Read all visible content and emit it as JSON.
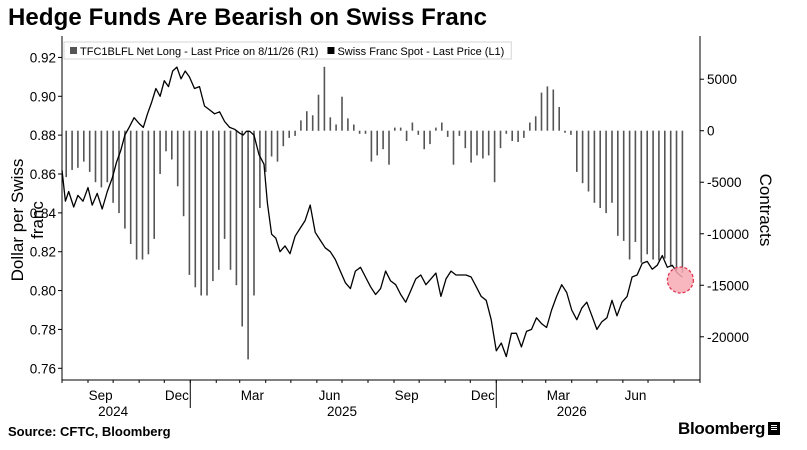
{
  "title": "Hedge Funds Are Bearish on Swiss Franc",
  "source": "Source: CFTC, Bloomberg",
  "brand": "Bloomberg",
  "chart_data": {
    "type": "line",
    "ylabel": "Dollar per Swiss franc",
    "ylabel_right": "Contracts",
    "y_left_ticks": [
      "0.92",
      "0.90",
      "0.88",
      "0.86",
      "0.84",
      "0.82",
      "0.80",
      "0.78",
      "0.76"
    ],
    "y_left_lim": [
      0.755,
      0.93
    ],
    "y_right_ticks": [
      "5000",
      "0",
      "-5000",
      "-10000",
      "-15000",
      "-20000"
    ],
    "y_right_lim": [
      -24000,
      9000
    ],
    "x_ticks": [
      {
        "label": "Sep",
        "month_index": 1
      },
      {
        "label": "Dec",
        "month_index": 4
      },
      {
        "label": "Mar",
        "month_index": 7
      },
      {
        "label": "Jun",
        "month_index": 10
      },
      {
        "label": "Sep",
        "month_index": 13
      },
      {
        "label": "Dec",
        "month_index": 16
      },
      {
        "label": "Mar",
        "month_index": 19
      },
      {
        "label": "Jun",
        "month_index": 22
      }
    ],
    "year_labels": [
      {
        "label": "2024",
        "month_index": 2.5
      },
      {
        "label": "2025",
        "month_index": 11.5
      },
      {
        "label": "2026",
        "month_index": 20.5
      }
    ],
    "x_start": "2024-08-01",
    "x_end": "2026-09-01",
    "legend": [
      {
        "label": "TFC1BLFL Net Long - Last Price on 8/11/26 (R1)",
        "color": "#555555",
        "marker": "square"
      },
      {
        "label": "Swiss Franc Spot - Last Price (L1)",
        "color": "#000000",
        "marker": "square"
      }
    ],
    "series": [
      {
        "name": "TFC1BLFL Net Long - Last Price on 8/11/26",
        "axis": "right",
        "type": "bar",
        "x": [
          "2024-08-06",
          "2024-08-13",
          "2024-08-20",
          "2024-08-27",
          "2024-09-03",
          "2024-09-10",
          "2024-09-17",
          "2024-09-24",
          "2024-10-01",
          "2024-10-08",
          "2024-10-15",
          "2024-10-22",
          "2024-10-29",
          "2024-11-05",
          "2024-11-12",
          "2024-11-19",
          "2024-11-26",
          "2024-12-03",
          "2024-12-10",
          "2024-12-17",
          "2024-12-24",
          "2024-12-31",
          "2025-01-07",
          "2025-01-14",
          "2025-01-21",
          "2025-01-28",
          "2025-02-04",
          "2025-02-11",
          "2025-02-18",
          "2025-02-25",
          "2025-03-04",
          "2025-03-11",
          "2025-03-18",
          "2025-03-25",
          "2025-04-01",
          "2025-04-08",
          "2025-04-15",
          "2025-04-22",
          "2025-04-29",
          "2025-05-06",
          "2025-05-13",
          "2025-05-20",
          "2025-05-27",
          "2025-06-03",
          "2025-06-10",
          "2025-06-17",
          "2025-06-24",
          "2025-07-01",
          "2025-07-08",
          "2025-07-15",
          "2025-07-22",
          "2025-07-29",
          "2025-08-05",
          "2025-08-12",
          "2025-08-19",
          "2025-08-26",
          "2025-09-02",
          "2025-09-09",
          "2025-09-16",
          "2025-09-23",
          "2025-09-30",
          "2025-10-07",
          "2025-10-14",
          "2025-10-21",
          "2025-10-28",
          "2025-11-04",
          "2025-11-11",
          "2025-11-18",
          "2025-11-25",
          "2025-12-02",
          "2025-12-09",
          "2025-12-16",
          "2025-12-23",
          "2025-12-30",
          "2026-01-06",
          "2026-01-13",
          "2026-01-20",
          "2026-01-27",
          "2026-02-03",
          "2026-02-10",
          "2026-02-17",
          "2026-02-24",
          "2026-03-03",
          "2026-03-10",
          "2026-03-17",
          "2026-03-24",
          "2026-03-31",
          "2026-04-07",
          "2026-04-14",
          "2026-04-21",
          "2026-04-28",
          "2026-05-05",
          "2026-05-12",
          "2026-05-19",
          "2026-05-26",
          "2026-06-02",
          "2026-06-09",
          "2026-06-16",
          "2026-06-23",
          "2026-06-30",
          "2026-07-07",
          "2026-07-14",
          "2026-07-21",
          "2026-07-28",
          "2026-08-04",
          "2026-08-11"
        ],
        "values": [
          -4500,
          -3800,
          -3600,
          -3000,
          -4000,
          -5000,
          -5500,
          -5000,
          -7000,
          -8000,
          -9500,
          -11000,
          -12500,
          -12500,
          -12000,
          -10500,
          -4200,
          -2000,
          -2800,
          -5400,
          -8300,
          -14000,
          -15200,
          -16000,
          -16000,
          -14600,
          -13500,
          -10500,
          -13500,
          -15000,
          -19000,
          -22200,
          -16000,
          -7500,
          -4000,
          -2500,
          -3000,
          -1500,
          -700,
          -500,
          1000,
          1900,
          1500,
          3500,
          6200,
          1300,
          600,
          3300,
          1200,
          600,
          -300,
          -300,
          -3000,
          -2400,
          -1800,
          -3300,
          300,
          300,
          -1000,
          800,
          -400,
          -1800,
          -1300,
          300,
          800,
          -600,
          -3300,
          -500,
          -1700,
          -3100,
          -2400,
          -2700,
          -2400,
          -5000,
          -1700,
          -300,
          -1000,
          -1100,
          -700,
          800,
          1400,
          3700,
          4300,
          4000,
          2300,
          -200,
          -400,
          -4000,
          -5100,
          -5900,
          -7000,
          -7500,
          -8000,
          -7000,
          -10200,
          -10700,
          -12500,
          -10800,
          -12800,
          -12000,
          -12500,
          -12600,
          -12400,
          -13100,
          -13600,
          -13800
        ]
      },
      {
        "name": "Swiss Franc Spot - Last Price",
        "axis": "left",
        "type": "line",
        "x": [
          "2024-08-01",
          "2024-08-05",
          "2024-08-09",
          "2024-08-15",
          "2024-08-20",
          "2024-08-26",
          "2024-09-01",
          "2024-09-06",
          "2024-09-12",
          "2024-09-18",
          "2024-09-24",
          "2024-09-30",
          "2024-10-05",
          "2024-10-10",
          "2024-10-15",
          "2024-10-20",
          "2024-10-26",
          "2024-11-01",
          "2024-11-06",
          "2024-11-11",
          "2024-11-16",
          "2024-11-21",
          "2024-11-26",
          "2024-12-01",
          "2024-12-06",
          "2024-12-11",
          "2024-12-16",
          "2024-12-21",
          "2024-12-26",
          "2024-12-31",
          "2025-01-06",
          "2025-01-12",
          "2025-01-18",
          "2025-01-24",
          "2025-01-30",
          "2025-02-05",
          "2025-02-11",
          "2025-02-17",
          "2025-02-23",
          "2025-03-01",
          "2025-03-05",
          "2025-03-09",
          "2025-03-13",
          "2025-03-18",
          "2025-03-24",
          "2025-03-30",
          "2025-04-03",
          "2025-04-08",
          "2025-04-13",
          "2025-04-18",
          "2025-04-24",
          "2025-04-30",
          "2025-05-06",
          "2025-05-12",
          "2025-05-18",
          "2025-05-24",
          "2025-05-30",
          "2025-06-05",
          "2025-06-11",
          "2025-06-17",
          "2025-06-23",
          "2025-06-29",
          "2025-07-05",
          "2025-07-11",
          "2025-07-17",
          "2025-07-23",
          "2025-07-29",
          "2025-08-04",
          "2025-08-10",
          "2025-08-16",
          "2025-08-22",
          "2025-08-28",
          "2025-09-03",
          "2025-09-09",
          "2025-09-15",
          "2025-09-21",
          "2025-09-27",
          "2025-10-03",
          "2025-10-09",
          "2025-10-15",
          "2025-10-21",
          "2025-10-27",
          "2025-11-02",
          "2025-11-08",
          "2025-11-14",
          "2025-11-20",
          "2025-11-26",
          "2025-12-02",
          "2025-12-08",
          "2025-12-14",
          "2025-12-20",
          "2025-12-26",
          "2026-01-01",
          "2026-01-07",
          "2026-01-13",
          "2026-01-19",
          "2026-01-25",
          "2026-01-31",
          "2026-02-06",
          "2026-02-12",
          "2026-02-18",
          "2026-02-24",
          "2026-03-02",
          "2026-03-08",
          "2026-03-14",
          "2026-03-20",
          "2026-03-26",
          "2026-04-01",
          "2026-04-07",
          "2026-04-13",
          "2026-04-19",
          "2026-04-25",
          "2026-05-01",
          "2026-05-07",
          "2026-05-13",
          "2026-05-19",
          "2026-05-25",
          "2026-05-31",
          "2026-06-06",
          "2026-06-12",
          "2026-06-18",
          "2026-06-24",
          "2026-06-30",
          "2026-07-06",
          "2026-07-12",
          "2026-07-18",
          "2026-07-24",
          "2026-07-30",
          "2026-08-05",
          "2026-08-11"
        ],
        "values": [
          0.862,
          0.846,
          0.851,
          0.843,
          0.849,
          0.846,
          0.853,
          0.844,
          0.85,
          0.842,
          0.851,
          0.858,
          0.866,
          0.872,
          0.88,
          0.884,
          0.889,
          0.886,
          0.884,
          0.891,
          0.897,
          0.904,
          0.9,
          0.908,
          0.905,
          0.913,
          0.915,
          0.909,
          0.913,
          0.91,
          0.904,
          0.905,
          0.895,
          0.893,
          0.891,
          0.892,
          0.887,
          0.884,
          0.883,
          0.881,
          0.88,
          0.882,
          0.882,
          0.88,
          0.87,
          0.865,
          0.845,
          0.829,
          0.827,
          0.82,
          0.823,
          0.819,
          0.828,
          0.832,
          0.836,
          0.844,
          0.83,
          0.826,
          0.822,
          0.82,
          0.816,
          0.81,
          0.804,
          0.801,
          0.81,
          0.812,
          0.807,
          0.802,
          0.798,
          0.801,
          0.81,
          0.805,
          0.803,
          0.798,
          0.794,
          0.8,
          0.806,
          0.808,
          0.803,
          0.806,
          0.809,
          0.797,
          0.806,
          0.81,
          0.808,
          0.808,
          0.808,
          0.807,
          0.802,
          0.797,
          0.795,
          0.785,
          0.769,
          0.773,
          0.766,
          0.778,
          0.778,
          0.771,
          0.779,
          0.78,
          0.786,
          0.783,
          0.781,
          0.79,
          0.797,
          0.803,
          0.799,
          0.79,
          0.785,
          0.791,
          0.794,
          0.787,
          0.78,
          0.784,
          0.786,
          0.795,
          0.787,
          0.794,
          0.797,
          0.807,
          0.808,
          0.814,
          0.815,
          0.811,
          0.813,
          0.818,
          0.812,
          0.813,
          0.809,
          0.807
        ]
      }
    ]
  }
}
